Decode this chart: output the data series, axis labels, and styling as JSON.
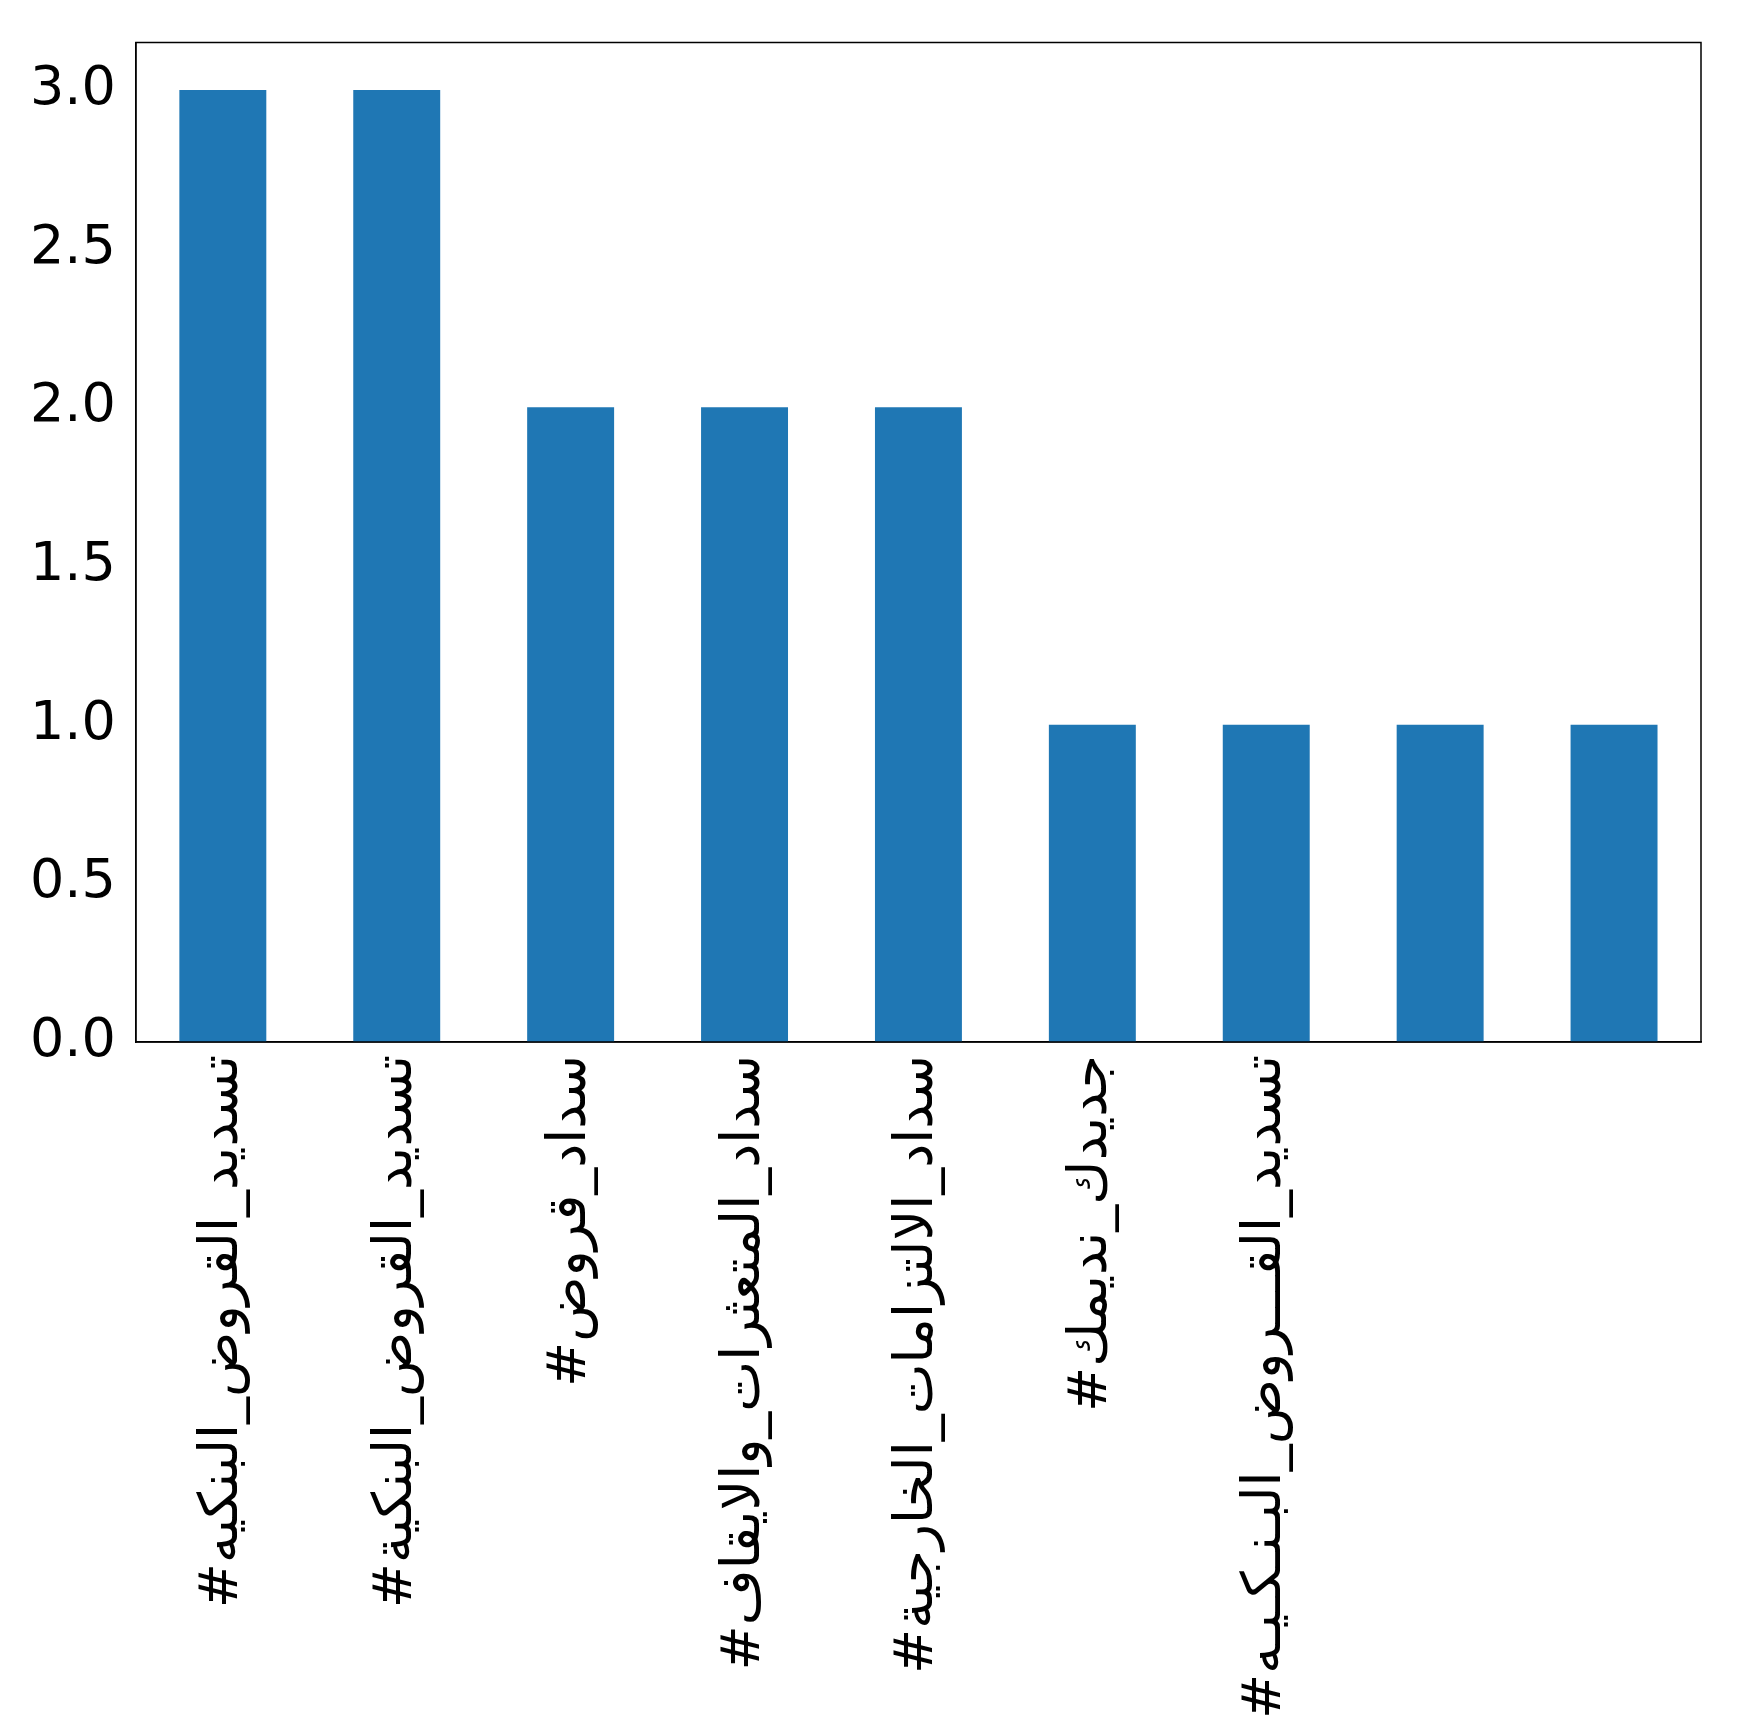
{
  "chart_data": {
    "type": "bar",
    "categories": [
      "#تسديد_القروض_البنكيه",
      "#تسديد_القروض_البنكية",
      "#سداد_قروض",
      "#سداد_المتعثرات_والايقاف",
      "#سداد_الالتزامات_الخارجية",
      "#جديدك_نديمك",
      "#تسديد_القـــروض_البـنـكـيـه",
      null,
      null
    ],
    "values": [
      3,
      3,
      2,
      2,
      2,
      1,
      1,
      1,
      1
    ],
    "color": "#1f77b4",
    "ylim": [
      0,
      3.15
    ],
    "yticks": [
      {
        "value": 0,
        "label": "0.0"
      },
      0.5,
      {
        "value": 1,
        "label": "1.0"
      },
      1.5,
      {
        "value": 2,
        "label": "2.0"
      },
      2.5,
      {
        "value": 3,
        "label": "3.0"
      }
    ],
    "grid": false,
    "legend": false
  }
}
